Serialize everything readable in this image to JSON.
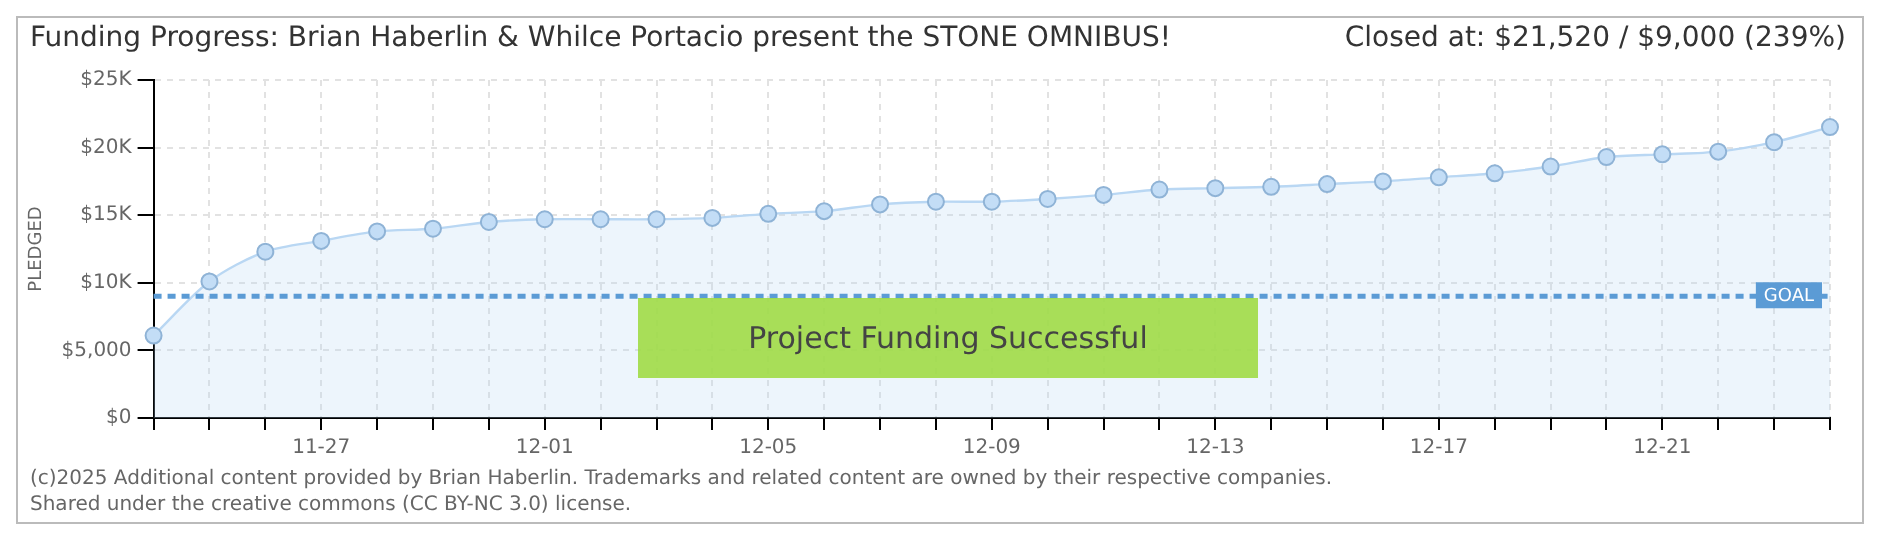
{
  "chart_data": {
    "type": "area",
    "title": "Funding Progress: Brian Haberlin & Whilce Portacio present the STONE OMNIBUS!",
    "subtitle": "Closed at: $21,520 / $9,000 (239%)",
    "ylabel": "PLEDGED",
    "categories": [
      null,
      null,
      null,
      "11-27",
      null,
      null,
      null,
      "12-01",
      null,
      null,
      null,
      "12-05",
      null,
      null,
      null,
      "12-09",
      null,
      null,
      null,
      "12-13",
      null,
      null,
      null,
      "12-17",
      null,
      null,
      null,
      "12-21",
      null,
      null,
      null
    ],
    "series": [
      {
        "color": "#b9d7f3",
        "values": [
          6100,
          10100,
          12300,
          13100,
          13800,
          14000,
          14500,
          14700,
          14700,
          14700,
          14800,
          15100,
          15300,
          15800,
          16000,
          16000,
          16200,
          16500,
          16900,
          17000,
          17100,
          17300,
          17500,
          17800,
          18100,
          18600,
          19300,
          19500,
          19700,
          20400,
          21520
        ]
      }
    ],
    "ylim": [
      0,
      25000
    ],
    "yticks": [
      {
        "value": 0,
        "label": "$0"
      },
      {
        "value": 5000,
        "label": "$5,000"
      },
      {
        "value": 10000,
        "label": "$10K"
      },
      {
        "value": 15000,
        "label": "$15K"
      },
      {
        "value": 20000,
        "label": "$20K"
      },
      {
        "value": 25000,
        "label": "$25K"
      }
    ],
    "ref_lines": [
      {
        "axis": "y",
        "value": 9000,
        "label": "GOAL",
        "color": "#5b9bd5",
        "line_style": "dashed"
      }
    ],
    "grid": true,
    "legend": false,
    "marker": "circle",
    "annotations": [
      "Project Funding Successful",
      "(c)2025 Additional content provided by Brian Haberlin. Trademarks and related content are owned by their respective companies.",
      "Shared under the creative commons (CC BY-NC 3.0) license."
    ]
  }
}
